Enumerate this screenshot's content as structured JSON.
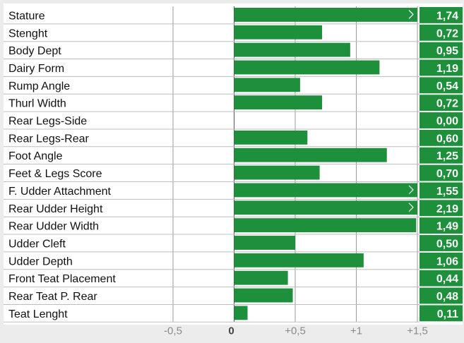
{
  "chart_data": {
    "type": "bar",
    "orientation": "horizontal",
    "categories": [
      "Stature",
      "Stenght",
      "Body Dept",
      "Dairy Form",
      "Rump Angle",
      "Thurl Width",
      "Rear Legs-Side",
      "Rear Legs-Rear",
      "Foot Angle",
      "Feet & Legs Score",
      "F. Udder Attachment",
      "Rear Udder Height",
      "Rear Udder Width",
      "Udder Cleft",
      "Udder Depth",
      "Front Teat Placement",
      "Rear Teat P. Rear",
      "Teat Lenght"
    ],
    "values": [
      1.74,
      0.72,
      0.95,
      1.19,
      0.54,
      0.72,
      0.0,
      0.6,
      1.25,
      0.7,
      1.55,
      2.19,
      1.49,
      0.5,
      1.06,
      0.44,
      0.48,
      0.11
    ],
    "value_labels": [
      "1,74",
      "0,72",
      "0,95",
      "1,19",
      "0,54",
      "0,72",
      "0,00",
      "0,60",
      "1,25",
      "0,70",
      "1,55",
      "2,19",
      "1,49",
      "0,50",
      "1,06",
      "0,44",
      "0,48",
      "0,11"
    ],
    "overflow_marker": ">",
    "xlim": [
      -0.5,
      1.5
    ],
    "xticks": [
      -0.5,
      0,
      0.5,
      1,
      1.5
    ],
    "xtick_labels": [
      "-0,5",
      "0",
      "+0,5",
      "+1",
      "+1,5"
    ],
    "title": "",
    "xlabel": "",
    "ylabel": "",
    "grid": true,
    "legend": "none",
    "colors": {
      "bar": "#1e8f3a",
      "value_box": "#1e8f3a",
      "grid": "#9a9a9a",
      "row_line": "#bdbdbd",
      "panel_bg": "#ffffff",
      "page_bg": "#ececec"
    }
  }
}
